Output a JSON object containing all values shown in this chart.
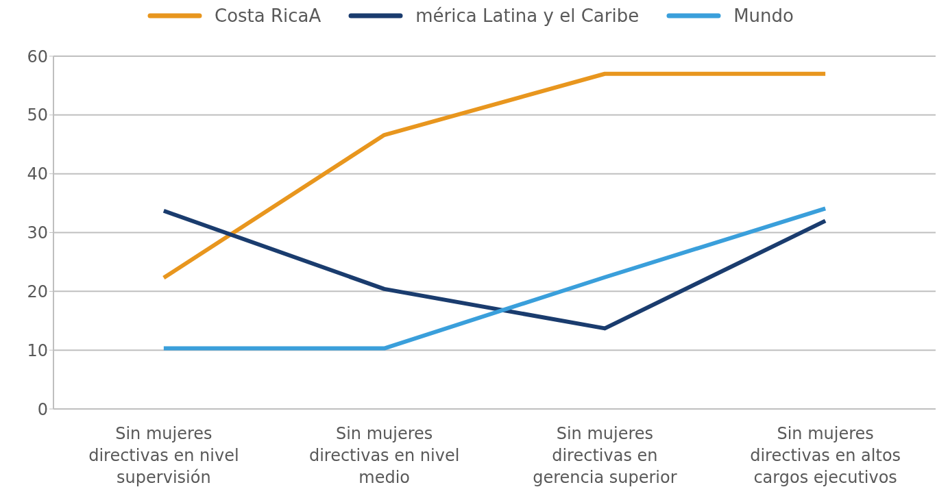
{
  "chart_data": {
    "type": "line",
    "categories": [
      "Sin mujeres directivas en nivel supervisión",
      "Sin mujeres directivas en nivel medio",
      "Sin mujeres directivas en gerencia superior",
      "Sin mujeres directivas en altos cargos ejecutivos"
    ],
    "series": [
      {
        "name": "Costa RicaA",
        "color": "#e8961e",
        "values": [
          22.3,
          46.6,
          57,
          57
        ]
      },
      {
        "name": "mérica Latina y el Caribe",
        "color": "#1a3c6e",
        "values": [
          33.7,
          20.4,
          13.7,
          32
        ]
      },
      {
        "name": "Mundo",
        "color": "#3a9fdb",
        "values": [
          10.3,
          10.3,
          22.4,
          34.1
        ]
      }
    ],
    "ylim": [
      0,
      60
    ],
    "yticks": [
      0,
      10,
      20,
      30,
      40,
      50,
      60
    ],
    "grid": "y",
    "legend": "top",
    "marker": "none",
    "line_style": "solid"
  }
}
